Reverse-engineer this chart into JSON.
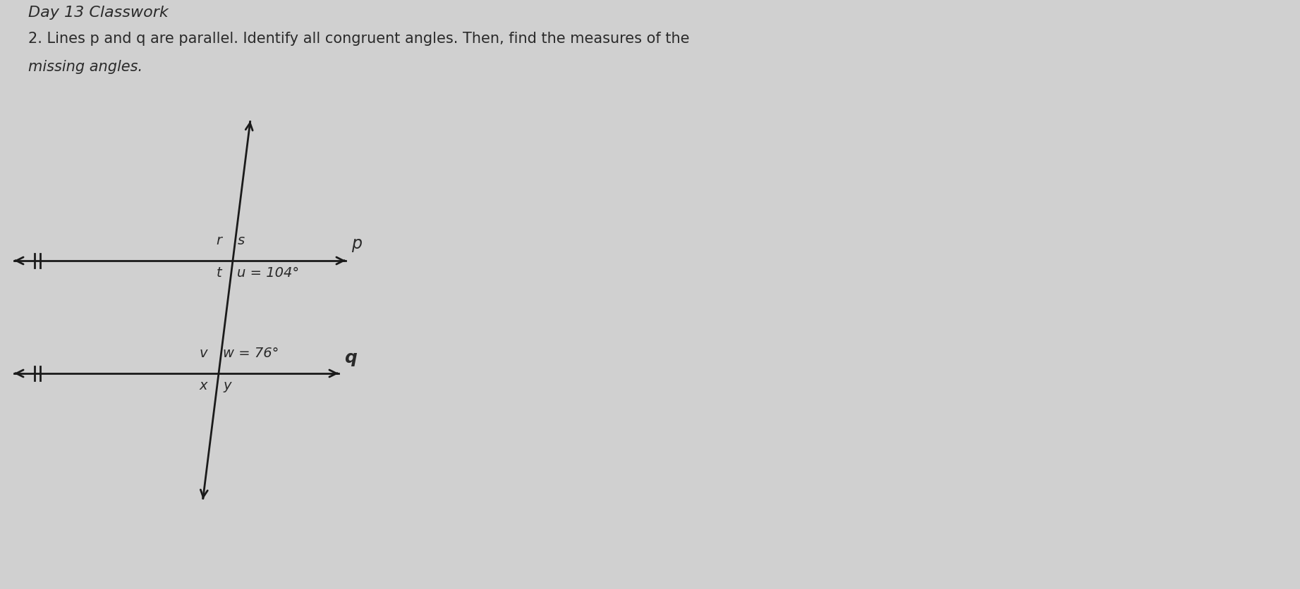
{
  "title": "Day 13 Classwork",
  "problem_line1": "2. Lines p and q are parallel. Identify all congruent angles. Then, find the measures of the",
  "problem_line2": "missing angles.",
  "bg_color": "#d0d0d0",
  "text_color": "#2a2a2a",
  "line_color": "#1a1a1a",
  "title_fontsize": 16,
  "problem_fontsize": 15,
  "label_fontsize": 14,
  "line_p_label": "p",
  "line_q_label": "q",
  "angle_u_text": "u = 104°",
  "angle_w_text": "w = 76°",
  "label_r": "r",
  "label_s": "s",
  "label_t": "t",
  "label_v": "v",
  "label_x": "x",
  "label_y": "y"
}
